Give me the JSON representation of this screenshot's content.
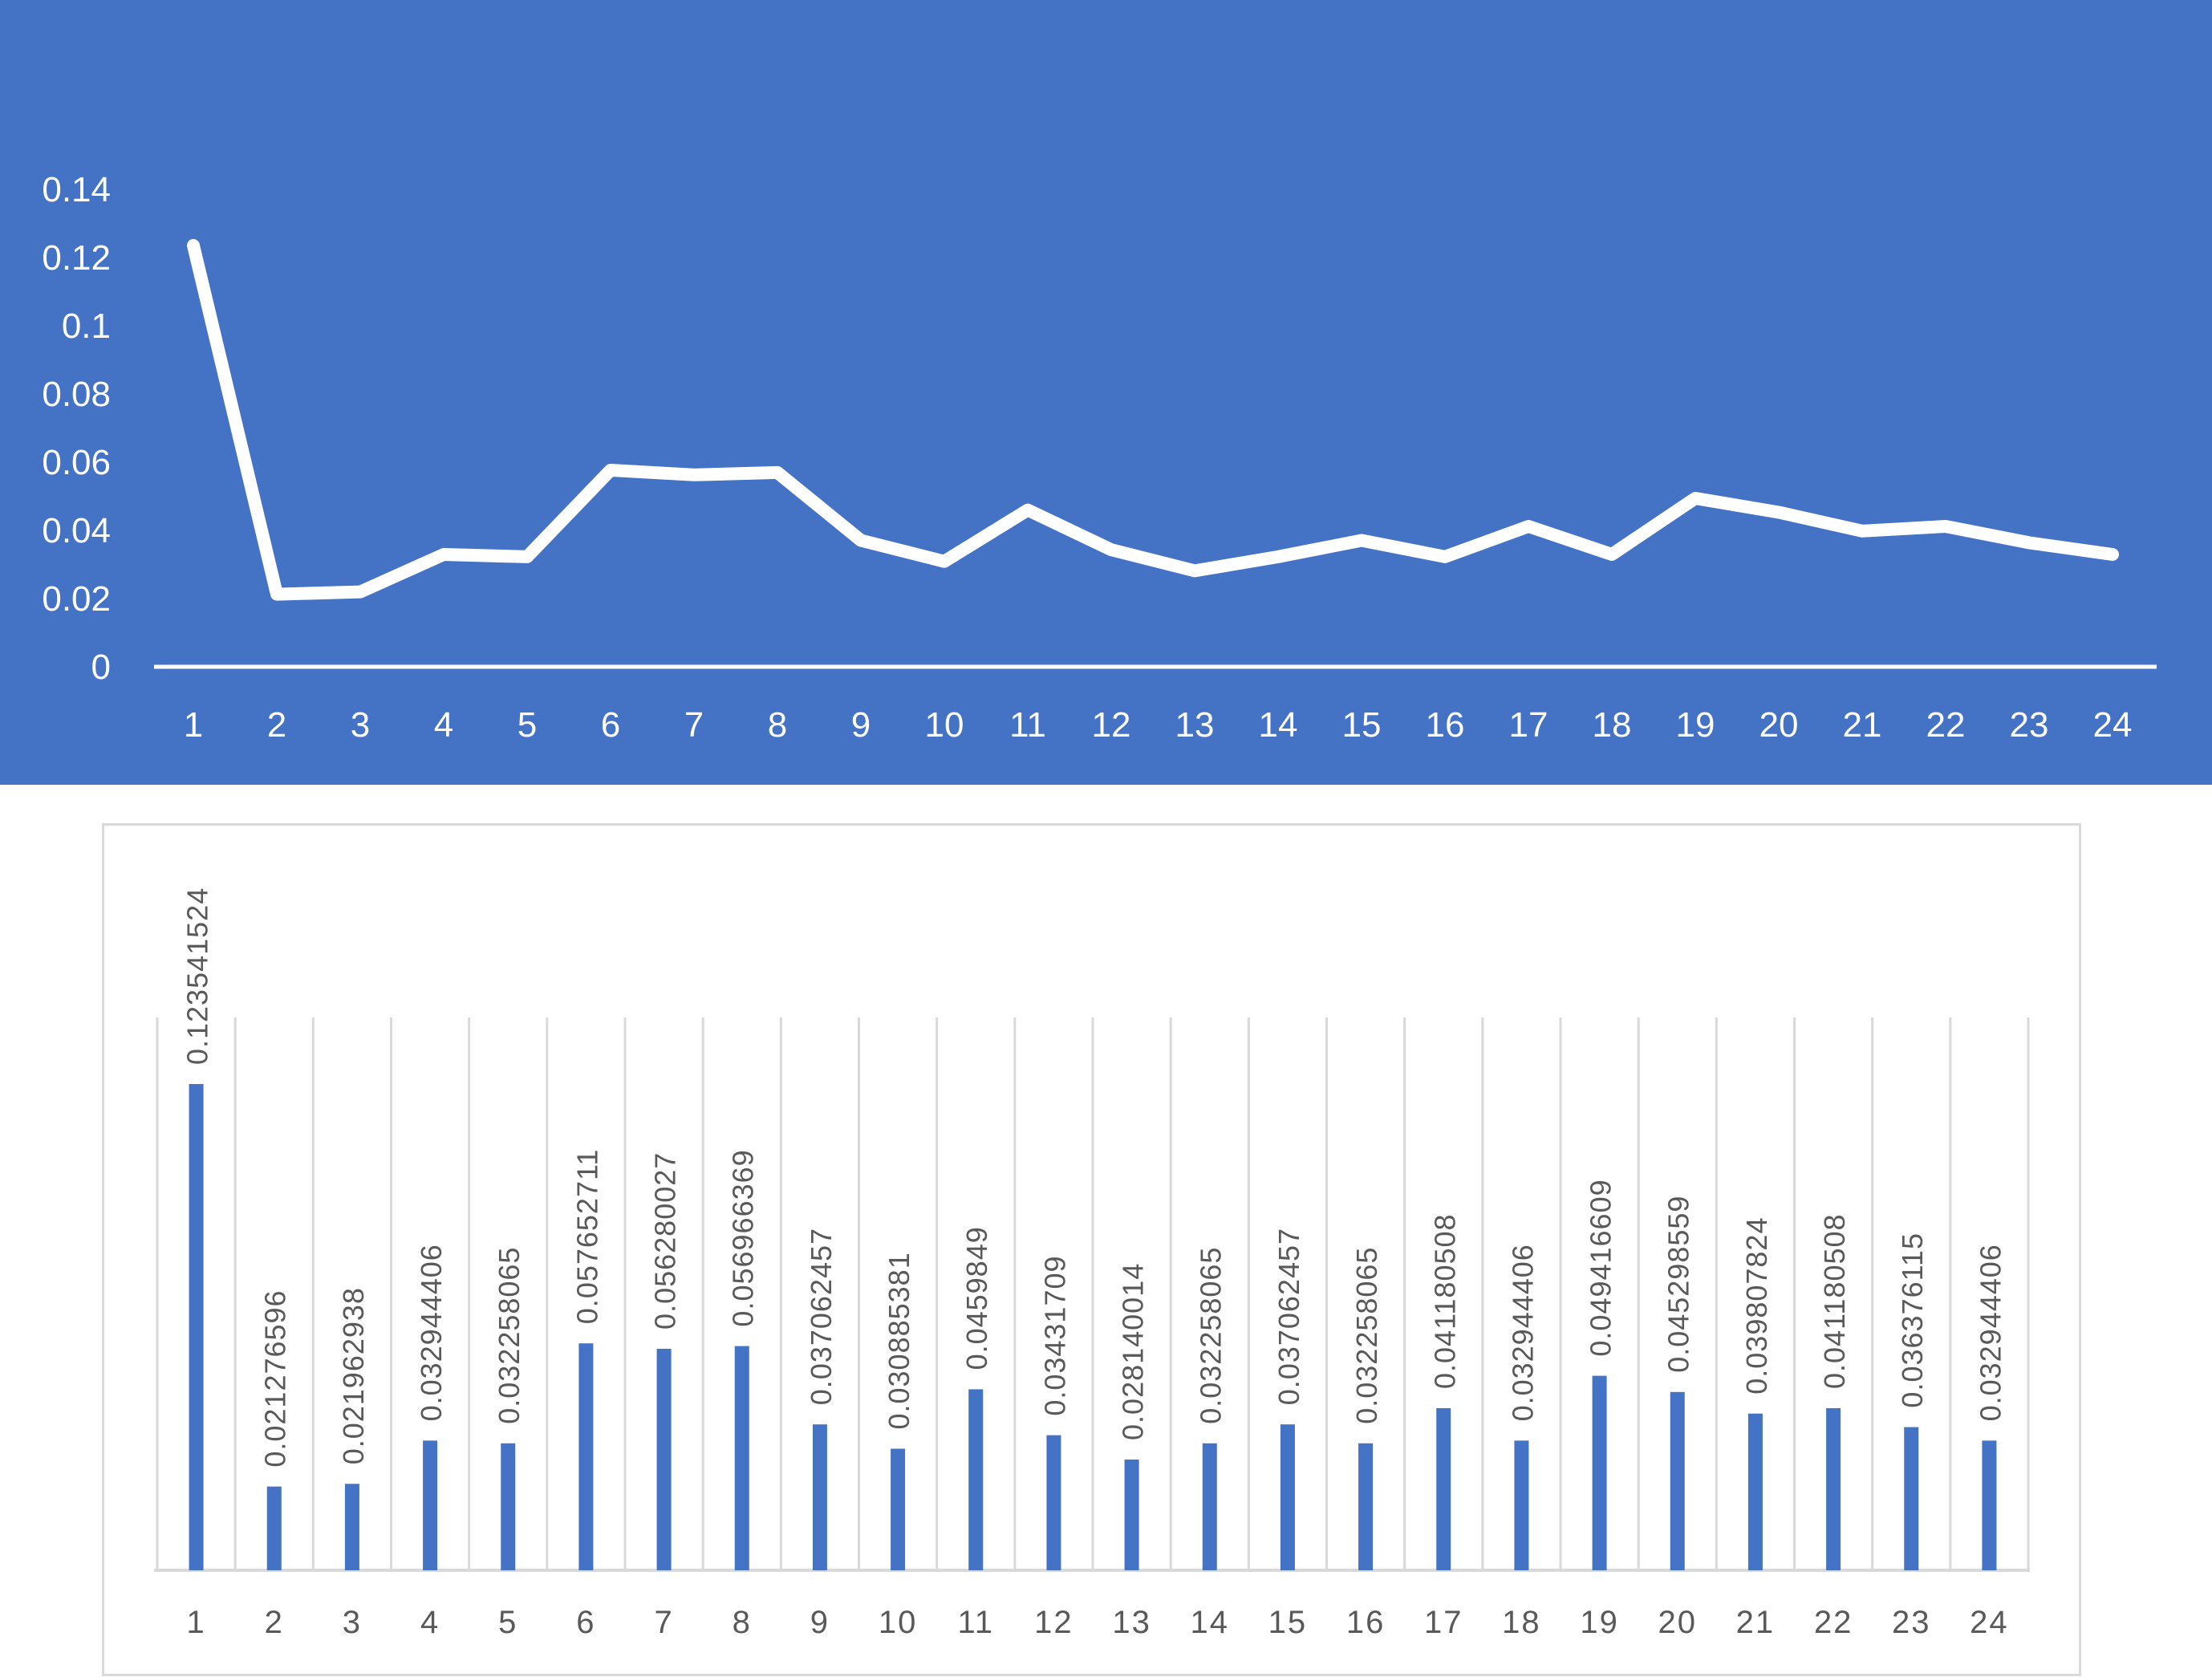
{
  "colors": {
    "panel_background": "#4472C4",
    "line": "#FFFFFF",
    "bar": "#4472C4",
    "grid": "#D9D9D9",
    "text": "#595959"
  },
  "chart_data": [
    {
      "type": "line",
      "x": [
        "1",
        "2",
        "3",
        "4",
        "5",
        "6",
        "7",
        "8",
        "9",
        "10",
        "11",
        "12",
        "13",
        "14",
        "15",
        "16",
        "17",
        "18",
        "19",
        "20",
        "21",
        "22",
        "23",
        "24"
      ],
      "series": [
        {
          "values": [
            0.123541524,
            0.021276596,
            0.021962938,
            0.032944406,
            0.032258065,
            0.057652711,
            0.056280027,
            0.056966369,
            0.037062457,
            0.030885381,
            0.0459849,
            0.03431709,
            0.028140014,
            0.032258065,
            0.037062457,
            0.032258065,
            0.041180508,
            0.032944406,
            0.049416609,
            0.045298559,
            0.039807824,
            0.041180508,
            0.036376115,
            0.032944406
          ]
        }
      ],
      "yticks": [
        "0",
        "0.02",
        "0.04",
        "0.06",
        "0.08",
        "0.1",
        "0.12",
        "0.14"
      ],
      "ylim": [
        0,
        0.14
      ],
      "drop_lines": true,
      "grid": false
    },
    {
      "type": "bar",
      "categories": [
        "1",
        "2",
        "3",
        "4",
        "5",
        "6",
        "7",
        "8",
        "9",
        "10",
        "11",
        "12",
        "13",
        "14",
        "15",
        "16",
        "17",
        "18",
        "19",
        "20",
        "21",
        "22",
        "23",
        "24"
      ],
      "values": [
        0.123541524,
        0.021276596,
        0.021962938,
        0.032944406,
        0.032258065,
        0.057652711,
        0.056280027,
        0.056966369,
        0.037062457,
        0.030885381,
        0.0459849,
        0.03431709,
        0.028140014,
        0.032258065,
        0.037062457,
        0.032258065,
        0.041180508,
        0.032944406,
        0.049416609,
        0.045298559,
        0.039807824,
        0.041180508,
        0.036376115,
        0.032944406
      ],
      "data_labels": [
        "0.123541524",
        "0.021276596",
        "0.021962938",
        "0.032944406",
        "0.032258065",
        "0.057652711",
        "0.056280027",
        "0.056966369",
        "0.037062457",
        "0.030885381",
        "0.0459849",
        "0.03431709",
        "0.028140014",
        "0.032258065",
        "0.037062457",
        "0.032258065",
        "0.041180508",
        "0.032944406",
        "0.049416609",
        "0.045298559",
        "0.039807824",
        "0.041180508",
        "0.036376115",
        "0.032944406"
      ],
      "ylim": [
        0,
        0.14
      ],
      "grid": "vertical"
    }
  ]
}
